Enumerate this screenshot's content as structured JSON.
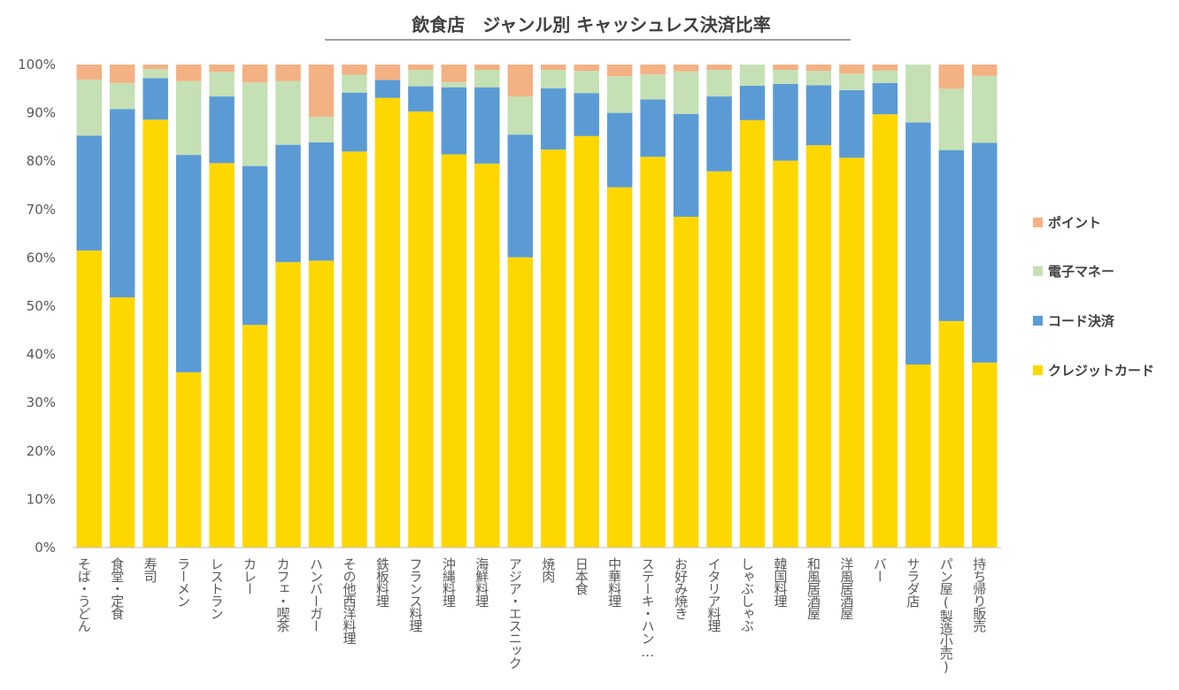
{
  "chart_data": {
    "type": "bar",
    "stacked": true,
    "title": "飲食店　ジャンル別 キャッシュレス決済比率",
    "y_ticks": [
      "0%",
      "10%",
      "20%",
      "30%",
      "40%",
      "50%",
      "60%",
      "70%",
      "80%",
      "90%",
      "100%"
    ],
    "ylim": [
      0,
      100
    ],
    "grid": false,
    "legend_position": "right",
    "categories": [
      "そば・うどん",
      "食堂・定食",
      "寿司",
      "ラーメン",
      "レストラン",
      "カレー",
      "カフェ・喫茶",
      "ハンバーガー",
      "その他西洋料理",
      "鉄板料理",
      "フランス料理",
      "沖縄料理",
      "海鮮料理",
      "アジア・エスニック",
      "焼肉",
      "日本食",
      "中華料理",
      "ステーキ・ハン…",
      "お好み焼き",
      "イタリア料理",
      "しゃぶしゃぶ",
      "韓国料理",
      "和風居酒屋",
      "洋風居酒屋",
      "バー",
      "サラダ店",
      "パン屋(製造小売)",
      "持ち帰り販売"
    ],
    "series": [
      {
        "name": "クレジットカード",
        "color": "#FFD700",
        "values": [
          61.5,
          51.8,
          88.6,
          36.3,
          79.6,
          46.1,
          59.1,
          59.4,
          82,
          93.1,
          90.3,
          81.4,
          79.5,
          60.1,
          82.4,
          85.2,
          74.6,
          80.9,
          68.5,
          77.9,
          88.5,
          80.1,
          83.3,
          80.7,
          89.7,
          37.9,
          46.9,
          38.3
        ]
      },
      {
        "name": "コード決済",
        "color": "#5B9BD5",
        "values": [
          23.8,
          39,
          8.6,
          45,
          13.8,
          32.9,
          24.3,
          24.5,
          12.2,
          3.7,
          5.2,
          13.9,
          15.8,
          25.4,
          12.7,
          8.9,
          15.4,
          11.9,
          21.3,
          15.5,
          7.1,
          15.9,
          12.4,
          14,
          6.5,
          50.1,
          35.4,
          45.5
        ]
      },
      {
        "name": "電子マネー",
        "color": "#C5E0B4",
        "values": [
          11.6,
          5.4,
          1.9,
          15.3,
          5.1,
          17.3,
          13.2,
          5.3,
          3.7,
          0,
          3.4,
          1.1,
          3.6,
          7.9,
          3.8,
          4.6,
          7.6,
          5.2,
          8.8,
          5.5,
          4.4,
          2.9,
          3,
          3.4,
          2.6,
          12,
          12.7,
          13.9
        ]
      },
      {
        "name": "ポイント",
        "color": "#F4B183",
        "values": [
          3.1,
          3.8,
          0.9,
          3.4,
          1.5,
          3.7,
          3.4,
          10.8,
          2.1,
          3.2,
          1.1,
          3.6,
          1.1,
          6.6,
          1.1,
          1.3,
          2.4,
          2,
          1.4,
          1.1,
          0,
          1.1,
          1.3,
          1.9,
          1.2,
          0,
          5,
          2.3
        ]
      }
    ],
    "legend": [
      "ポイント",
      "電子マネー",
      "コード決済",
      "クレジットカード"
    ]
  }
}
